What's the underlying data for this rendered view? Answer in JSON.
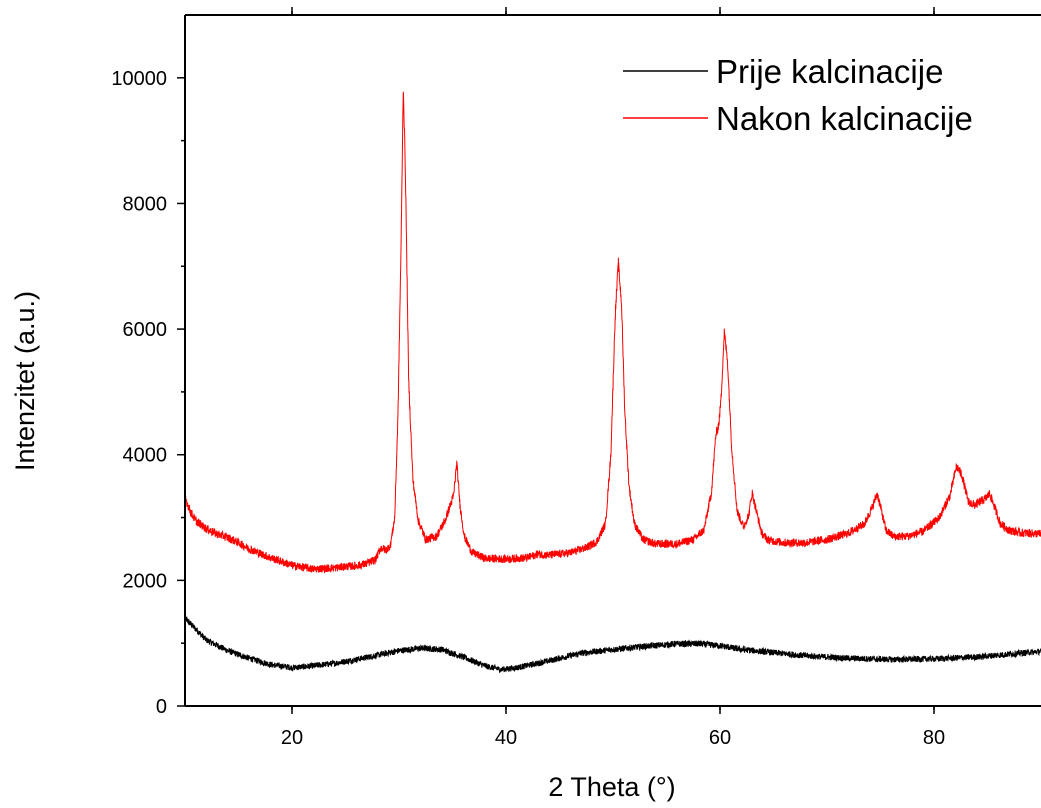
{
  "chart_data": {
    "type": "line",
    "xlabel": "2 Theta (°)",
    "ylabel": "Intenzitet (a.u.)",
    "xlim": [
      10,
      90
    ],
    "ylim": [
      0,
      11000
    ],
    "xticks": [
      20,
      40,
      60,
      80
    ],
    "yticks": [
      0,
      2000,
      4000,
      6000,
      8000,
      10000
    ],
    "legend_position": "top-right",
    "grid": false,
    "series": [
      {
        "name": "Prije kalcinacije",
        "color": "#000000",
        "noise": 45,
        "x": [
          10,
          12,
          14,
          16,
          18,
          20,
          22,
          24,
          26,
          28,
          30,
          32,
          34,
          36,
          38,
          39.5,
          41,
          43,
          45,
          47,
          50,
          53,
          56,
          58,
          60,
          62,
          65,
          68,
          72,
          76,
          80,
          84,
          86,
          88,
          90
        ],
        "y": [
          1400,
          1050,
          880,
          760,
          660,
          610,
          640,
          680,
          740,
          810,
          880,
          920,
          900,
          780,
          640,
          580,
          610,
          680,
          760,
          840,
          900,
          950,
          990,
          990,
          960,
          900,
          850,
          800,
          760,
          740,
          750,
          780,
          810,
          840,
          870
        ]
      },
      {
        "name": "Nakon kalcinacije",
        "color": "#ff0000",
        "noise": 50,
        "x": [
          10,
          10.5,
          11,
          12,
          13,
          14,
          15,
          16,
          18,
          20,
          22,
          24,
          25,
          26,
          27,
          27.8,
          28.3,
          28.8,
          29.2,
          29.6,
          29.9,
          30.2,
          30.4,
          30.6,
          30.9,
          31.3,
          31.8,
          32.5,
          33.5,
          34.3,
          34.8,
          35.1,
          35.4,
          35.7,
          36.1,
          36.8,
          38,
          40,
          42,
          43,
          44,
          46,
          47.5,
          48.5,
          49.3,
          49.8,
          50.2,
          50.5,
          50.8,
          51.1,
          51.5,
          52,
          52.8,
          54,
          56,
          57.5,
          58.5,
          59.2,
          59.6,
          59.9,
          60.1,
          60.4,
          60.7,
          61.1,
          61.6,
          62.2,
          62.7,
          63.0,
          63.4,
          63.9,
          64.5,
          66,
          68,
          70,
          72,
          73.5,
          74.2,
          74.7,
          75.1,
          75.5,
          76.2,
          77.5,
          79,
          80.5,
          81.5,
          82.1,
          82.6,
          83.2,
          83.8,
          84.3,
          84.8,
          85.2,
          85.6,
          86.2,
          87,
          88,
          90
        ],
        "y": [
          3320,
          3100,
          2950,
          2820,
          2740,
          2680,
          2600,
          2500,
          2360,
          2240,
          2180,
          2200,
          2220,
          2230,
          2270,
          2330,
          2520,
          2480,
          2560,
          3000,
          4600,
          7400,
          9880,
          8500,
          5200,
          3600,
          2950,
          2650,
          2700,
          2950,
          3200,
          3350,
          3870,
          3200,
          2700,
          2450,
          2350,
          2340,
          2360,
          2420,
          2400,
          2440,
          2520,
          2620,
          2900,
          4000,
          6200,
          7050,
          6400,
          4700,
          3500,
          2900,
          2650,
          2580,
          2580,
          2650,
          2800,
          3400,
          4300,
          4500,
          4900,
          5950,
          5500,
          4100,
          3100,
          2850,
          3050,
          3400,
          3100,
          2750,
          2640,
          2600,
          2600,
          2650,
          2750,
          2900,
          3150,
          3380,
          3100,
          2800,
          2700,
          2700,
          2780,
          3000,
          3350,
          3820,
          3680,
          3250,
          3200,
          3250,
          3300,
          3380,
          3200,
          2900,
          2800,
          2760,
          2740
        ]
      }
    ]
  }
}
